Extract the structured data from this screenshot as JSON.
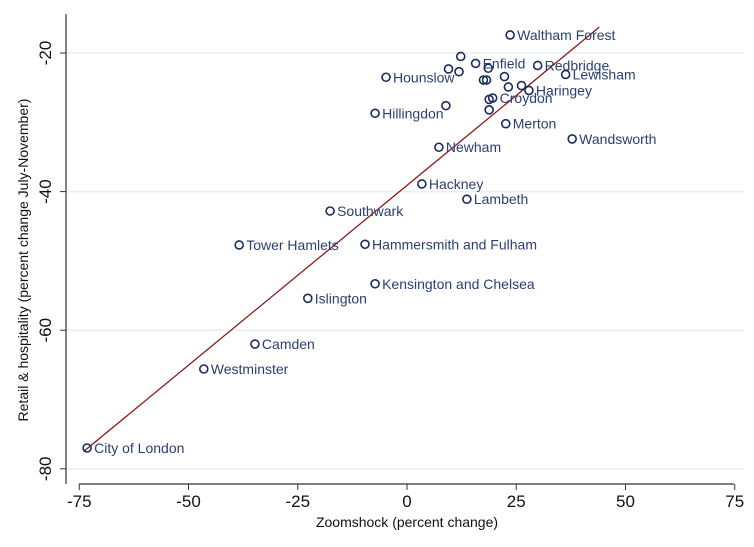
{
  "chart_data": {
    "type": "scatter",
    "xlabel": "Zoomshock (percent change)",
    "ylabel": "Retail & hospitality (percent change July-November)",
    "xlim": [
      -75,
      75
    ],
    "ylim": [
      -80,
      -15
    ],
    "xticks": [
      -75,
      -50,
      -25,
      0,
      25,
      50,
      75
    ],
    "yticks": [
      -20,
      -40,
      -60,
      -80
    ],
    "grid": "horizontal",
    "colors": {
      "marker": "#1a2a5c",
      "label": "#2b3f73",
      "fit_line": "#8b1a1a",
      "grid": "#e8eef2"
    },
    "fit_line": {
      "slope": 0.519,
      "intercept": -39.1,
      "x_range": [
        -74,
        44
      ]
    },
    "points": [
      {
        "label": "City of London",
        "x": -73.2,
        "y": -77.0
      },
      {
        "label": "Westminster",
        "x": -46.5,
        "y": -65.6
      },
      {
        "label": "Camden",
        "x": -34.8,
        "y": -62.0
      },
      {
        "label": "Islington",
        "x": -22.7,
        "y": -55.4
      },
      {
        "label": "Kensington and Chelsea",
        "x": -7.3,
        "y": -53.3
      },
      {
        "label": "Tower Hamlets",
        "x": -38.4,
        "y": -47.7
      },
      {
        "label": "Hammersmith and Fulham",
        "x": -9.6,
        "y": -47.6
      },
      {
        "label": "Southwark",
        "x": -17.6,
        "y": -42.8
      },
      {
        "label": "Hackney",
        "x": 3.4,
        "y": -38.9
      },
      {
        "label": "Lambeth",
        "x": 13.7,
        "y": -41.1
      },
      {
        "label": "Newham",
        "x": 7.3,
        "y": -33.6
      },
      {
        "label": "Wandsworth",
        "x": 37.8,
        "y": -32.4
      },
      {
        "label": "Merton",
        "x": 22.6,
        "y": -30.2
      },
      {
        "label": "Hillingdon",
        "x": -7.3,
        "y": -28.7
      },
      {
        "label": "Hounslow",
        "x": -4.8,
        "y": -23.5
      },
      {
        "label": "Waltham Forest",
        "x": 23.6,
        "y": -17.4
      },
      {
        "label": "Enfield",
        "x": 15.7,
        "y": -21.5
      },
      {
        "label": "Redbridge",
        "x": 29.9,
        "y": -21.8
      },
      {
        "label": "Lewisham",
        "x": 36.3,
        "y": -23.1
      },
      {
        "label": "Haringey",
        "x": 27.9,
        "y": -25.4
      },
      {
        "label": "Croydon",
        "x": 19.6,
        "y": -26.5
      },
      {
        "label": "",
        "x": 12.3,
        "y": -20.5
      },
      {
        "label": "",
        "x": 18.6,
        "y": -22.2
      },
      {
        "label": "",
        "x": 9.5,
        "y": -22.3
      },
      {
        "label": "",
        "x": 11.9,
        "y": -22.7
      },
      {
        "label": "",
        "x": 17.5,
        "y": -23.9
      },
      {
        "label": "",
        "x": 18.2,
        "y": -23.9
      },
      {
        "label": "",
        "x": 22.3,
        "y": -23.4
      },
      {
        "label": "",
        "x": 23.2,
        "y": -24.9
      },
      {
        "label": "",
        "x": 26.2,
        "y": -24.7
      },
      {
        "label": "",
        "x": 18.8,
        "y": -26.7
      },
      {
        "label": "",
        "x": 8.9,
        "y": -27.6
      },
      {
        "label": "",
        "x": 18.8,
        "y": -28.2
      }
    ]
  }
}
